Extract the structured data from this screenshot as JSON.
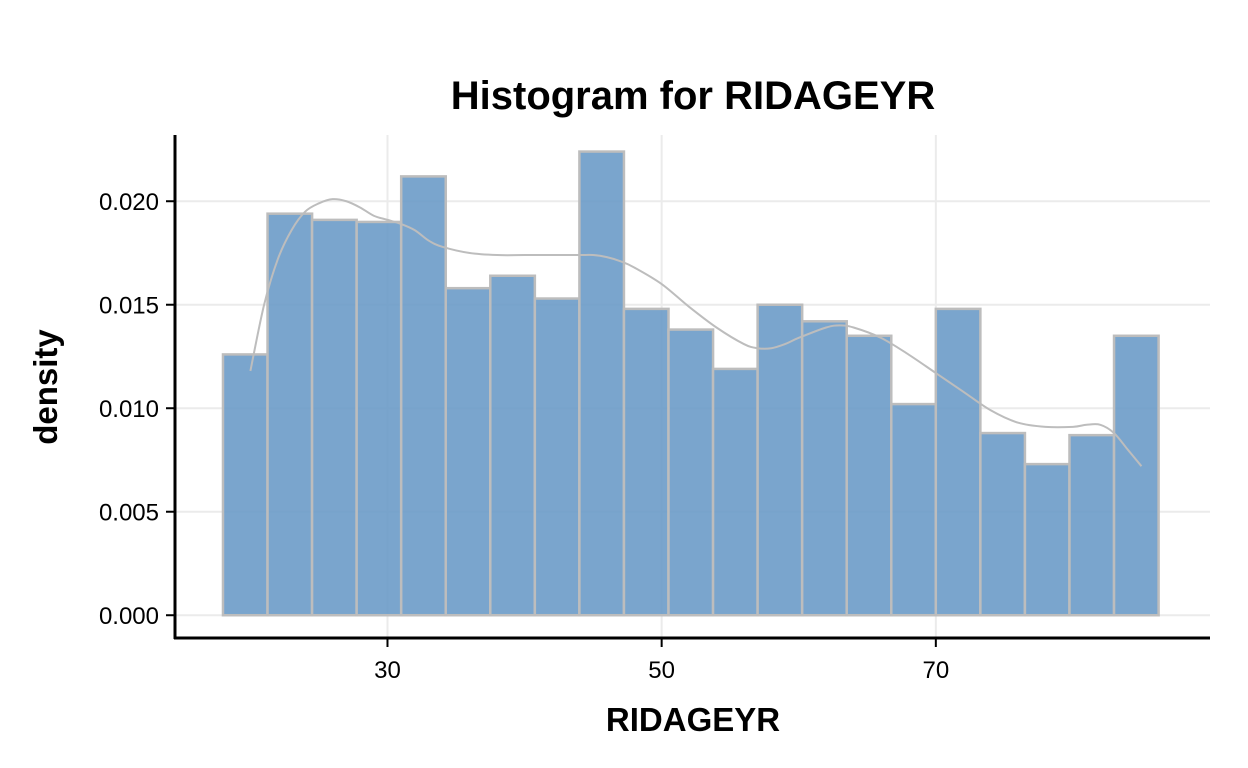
{
  "chart_data": {
    "type": "bar",
    "subtype": "histogram",
    "title": "Histogram for RIDAGEYR",
    "xlabel": "RIDAGEYR",
    "ylabel": "density",
    "xlim": [
      14.5,
      90
    ],
    "ylim": [
      -0.0011,
      0.0232
    ],
    "x_ticks": [
      30,
      50,
      70
    ],
    "x_tick_labels": [
      "30",
      "50",
      "70"
    ],
    "y_ticks": [
      0.0,
      0.005,
      0.01,
      0.015,
      0.02
    ],
    "y_tick_labels": [
      "0.000",
      "0.005",
      "0.010",
      "0.015",
      "0.020"
    ],
    "grid": true,
    "bins": [
      {
        "start": 18.0,
        "end": 21.25,
        "value": 0.0126
      },
      {
        "start": 21.25,
        "end": 24.5,
        "value": 0.0194
      },
      {
        "start": 24.5,
        "end": 27.75,
        "value": 0.0191
      },
      {
        "start": 27.75,
        "end": 31.0,
        "value": 0.019
      },
      {
        "start": 31.0,
        "end": 34.25,
        "value": 0.0212
      },
      {
        "start": 34.25,
        "end": 37.5,
        "value": 0.0158
      },
      {
        "start": 37.5,
        "end": 40.75,
        "value": 0.0164
      },
      {
        "start": 40.75,
        "end": 44.0,
        "value": 0.0153
      },
      {
        "start": 44.0,
        "end": 47.25,
        "value": 0.0224
      },
      {
        "start": 47.25,
        "end": 50.5,
        "value": 0.0148
      },
      {
        "start": 50.5,
        "end": 53.75,
        "value": 0.0138
      },
      {
        "start": 53.75,
        "end": 57.0,
        "value": 0.0119
      },
      {
        "start": 57.0,
        "end": 60.25,
        "value": 0.015
      },
      {
        "start": 60.25,
        "end": 63.5,
        "value": 0.0142
      },
      {
        "start": 63.5,
        "end": 66.75,
        "value": 0.0135
      },
      {
        "start": 66.75,
        "end": 70.0,
        "value": 0.0102
      },
      {
        "start": 70.0,
        "end": 73.25,
        "value": 0.0148
      },
      {
        "start": 73.25,
        "end": 76.5,
        "value": 0.0088
      },
      {
        "start": 76.5,
        "end": 79.75,
        "value": 0.0073
      },
      {
        "start": 79.75,
        "end": 83.0,
        "value": 0.0087
      },
      {
        "start": 83.0,
        "end": 86.25,
        "value": 0.0135
      }
    ],
    "density_curve": {
      "x": [
        20.0,
        21.0,
        22.0,
        23.0,
        24.0,
        25.0,
        26.0,
        27.0,
        28.0,
        29.0,
        30.0,
        31.0,
        32.0,
        33.0,
        34.0,
        36.0,
        38.0,
        40.0,
        42.0,
        44.0,
        45.0,
        46.0,
        47.0,
        48.0,
        50.0,
        52.0,
        54.0,
        56.0,
        57.0,
        58.0,
        59.0,
        60.0,
        62.0,
        63.0,
        64.0,
        66.0,
        68.0,
        70.0,
        72.0,
        74.0,
        76.0,
        78.0,
        80.0,
        81.0,
        82.0,
        83.0,
        84.0,
        85.0
      ],
      "y": [
        0.0118,
        0.015,
        0.0172,
        0.0186,
        0.0195,
        0.0199,
        0.0201,
        0.02,
        0.0197,
        0.0193,
        0.0191,
        0.0189,
        0.0186,
        0.0181,
        0.0178,
        0.0175,
        0.0174,
        0.0174,
        0.0174,
        0.0174,
        0.0174,
        0.0173,
        0.0171,
        0.0168,
        0.016,
        0.0149,
        0.0139,
        0.0131,
        0.0129,
        0.0129,
        0.0131,
        0.0134,
        0.0139,
        0.014,
        0.0139,
        0.0134,
        0.0126,
        0.0117,
        0.0108,
        0.0099,
        0.0093,
        0.0091,
        0.0091,
        0.0092,
        0.0092,
        0.0088,
        0.008,
        0.0072
      ]
    }
  }
}
